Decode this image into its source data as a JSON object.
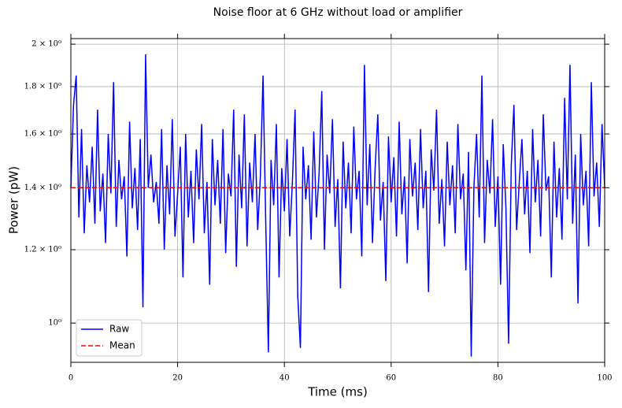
{
  "chart_data": {
    "type": "line",
    "title": "Noise floor at 6 GHz without load or amplifier",
    "xlabel": "Time (ms)",
    "ylabel": "Power (pW)",
    "log_y": true,
    "grid": true,
    "legend": "lower left",
    "xlim": [
      0,
      100
    ],
    "xticks": [
      0,
      20,
      40,
      60,
      80,
      100
    ],
    "ylim": [
      0.907,
      2.028
    ],
    "yticks": [
      {
        "value": 1,
        "label": "10⁰"
      },
      {
        "value": 1.2,
        "label": "1.2 × 10⁰"
      },
      {
        "value": 1.4,
        "label": "1.4 × 10⁰"
      },
      {
        "value": 1.6,
        "label": "1.6 × 10⁰"
      },
      {
        "value": 1.8,
        "label": "1.8 × 10⁰"
      },
      {
        "value": 2,
        "label": "2 × 10⁰"
      }
    ],
    "series": [
      {
        "name": "Raw",
        "color": "#0000ff",
        "linestyle": "solid",
        "x": [
          0,
          0.5,
          1,
          1.5,
          2,
          2.5,
          3,
          3.5,
          4,
          4.5,
          5,
          5.5,
          6,
          6.5,
          7,
          7.5,
          8,
          8.5,
          9,
          9.5,
          10,
          10.5,
          11,
          11.5,
          12,
          12.5,
          13,
          13.5,
          14,
          14.5,
          15,
          15.5,
          16,
          16.5,
          17,
          17.5,
          18,
          18.5,
          19,
          19.5,
          20,
          20.5,
          21,
          21.5,
          22,
          22.5,
          23,
          23.5,
          24,
          24.5,
          25,
          25.5,
          26,
          26.5,
          27,
          27.5,
          28,
          28.5,
          29,
          29.5,
          30,
          30.5,
          31,
          31.5,
          32,
          32.5,
          33,
          33.5,
          34,
          34.5,
          35,
          35.5,
          36,
          36.5,
          37,
          37.5,
          38,
          38.5,
          39,
          39.5,
          40,
          40.5,
          41,
          41.5,
          42,
          42.5,
          43,
          43.5,
          44,
          44.5,
          45,
          45.5,
          46,
          46.5,
          47,
          47.5,
          48,
          48.5,
          49,
          49.5,
          50,
          50.5,
          51,
          51.5,
          52,
          52.5,
          53,
          53.5,
          54,
          54.5,
          55,
          55.5,
          56,
          56.5,
          57,
          57.5,
          58,
          58.5,
          59,
          59.5,
          60,
          60.5,
          61,
          61.5,
          62,
          62.5,
          63,
          63.5,
          64,
          64.5,
          65,
          65.5,
          66,
          66.5,
          67,
          67.5,
          68,
          68.5,
          69,
          69.5,
          70,
          70.5,
          71,
          71.5,
          72,
          72.5,
          73,
          73.5,
          74,
          74.5,
          75,
          75.5,
          76,
          76.5,
          77,
          77.5,
          78,
          78.5,
          79,
          79.5,
          80,
          80.5,
          81,
          81.5,
          82,
          82.5,
          83,
          83.5,
          84,
          84.5,
          85,
          85.5,
          86,
          86.5,
          87,
          87.5,
          88,
          88.5,
          89,
          89.5,
          90,
          90.5,
          91,
          91.5,
          92,
          92.5,
          93,
          93.5,
          94,
          94.5,
          95,
          95.5,
          96,
          96.5,
          97,
          97.5,
          98,
          98.5,
          99,
          99.5,
          100
        ],
        "values": [
          1.4,
          1.72,
          1.85,
          1.3,
          1.62,
          1.25,
          1.48,
          1.35,
          1.55,
          1.28,
          1.7,
          1.32,
          1.45,
          1.22,
          1.6,
          1.38,
          1.82,
          1.27,
          1.5,
          1.36,
          1.44,
          1.18,
          1.65,
          1.33,
          1.47,
          1.26,
          1.58,
          1.04,
          1.95,
          1.4,
          1.52,
          1.35,
          1.42,
          1.28,
          1.62,
          1.2,
          1.48,
          1.31,
          1.66,
          1.24,
          1.38,
          1.55,
          1.12,
          1.6,
          1.3,
          1.46,
          1.22,
          1.54,
          1.36,
          1.64,
          1.25,
          1.42,
          1.1,
          1.58,
          1.34,
          1.5,
          1.28,
          1.62,
          1.19,
          1.45,
          1.37,
          1.7,
          1.15,
          1.52,
          1.33,
          1.68,
          1.21,
          1.49,
          1.35,
          1.6,
          1.26,
          1.44,
          1.85,
          1.29,
          0.93,
          1.5,
          1.34,
          1.64,
          1.12,
          1.47,
          1.32,
          1.58,
          1.24,
          1.42,
          1.7,
          1.07,
          0.94,
          1.55,
          1.36,
          1.48,
          1.23,
          1.61,
          1.3,
          1.45,
          1.78,
          1.2,
          1.52,
          1.38,
          1.66,
          1.27,
          1.43,
          1.09,
          1.57,
          1.33,
          1.49,
          1.25,
          1.63,
          1.36,
          1.46,
          1.18,
          1.9,
          1.34,
          1.56,
          1.22,
          1.47,
          1.68,
          1.29,
          1.42,
          1.11,
          1.59,
          1.35,
          1.51,
          1.24,
          1.65,
          1.31,
          1.44,
          1.16,
          1.58,
          1.37,
          1.49,
          1.26,
          1.62,
          1.33,
          1.46,
          1.08,
          1.54,
          1.39,
          1.7,
          1.28,
          1.43,
          1.21,
          1.57,
          1.34,
          1.48,
          1.25,
          1.64,
          1.36,
          1.45,
          1.14,
          1.53,
          0.92,
          1.4,
          1.6,
          1.3,
          1.85,
          1.22,
          1.5,
          1.38,
          1.66,
          1.27,
          1.44,
          1.1,
          1.56,
          1.33,
          0.95,
          1.48,
          1.72,
          1.26,
          1.42,
          1.58,
          1.31,
          1.46,
          1.19,
          1.62,
          1.35,
          1.5,
          1.24,
          1.68,
          1.39,
          1.44,
          1.12,
          1.57,
          1.3,
          1.47,
          1.23,
          1.75,
          1.36,
          1.9,
          1.28,
          1.52,
          1.05,
          1.6,
          1.34,
          1.46,
          1.21,
          1.82,
          1.37,
          1.49,
          1.27,
          1.64,
          1.4
        ]
      },
      {
        "name": "Mean",
        "color": "#ff0000",
        "linestyle": "dashed",
        "x": [
          0,
          100
        ],
        "values": [
          1.4,
          1.4
        ]
      }
    ]
  }
}
